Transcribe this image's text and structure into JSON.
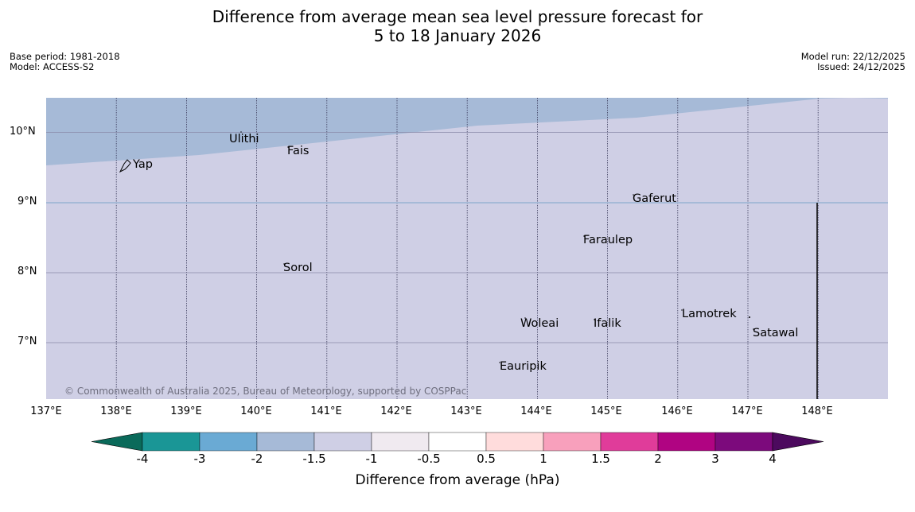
{
  "title": {
    "line1": "Difference from average mean sea level pressure forecast for",
    "line2": "5 to 18 January 2026"
  },
  "meta": {
    "base_period": "Base period: 1981-2018",
    "model": "Model: ACCESS-S2",
    "model_run": "Model run: 22/12/2025",
    "issued": "Issued: 24/12/2025"
  },
  "colors": {
    "band_minus_2_to_minus_1_5": "#a6bad7",
    "band_minus_1_5_to_minus_1": "#cfcfe5",
    "gridline": "#3a3a5a",
    "coast": "#000000"
  },
  "map": {
    "lon_range": [
      137,
      149
    ],
    "lat_range": [
      6.3,
      10.5
    ],
    "lat_labels": [
      "10°N",
      "9°N",
      "8°N",
      "7°N"
    ],
    "lon_labels": [
      "137°E",
      "138°E",
      "139°E",
      "140°E",
      "141°E",
      "142°E",
      "143°E",
      "144°E",
      "145°E",
      "146°E",
      "147°E",
      "148°E"
    ],
    "places": [
      {
        "name": "Yap",
        "lon": 138.2,
        "lat": 9.5
      },
      {
        "name": "Ulithi",
        "lon": 139.65,
        "lat": 9.88
      },
      {
        "name": "Fais",
        "lon": 140.45,
        "lat": 9.72
      },
      {
        "name": "Gaferut",
        "lon": 145.35,
        "lat": 9.03
      },
      {
        "name": "Faraulep",
        "lon": 144.7,
        "lat": 8.45
      },
      {
        "name": "Sorol",
        "lon": 140.38,
        "lat": 8.05
      },
      {
        "name": "Lamotrek",
        "lon": 146.07,
        "lat": 7.39
      },
      {
        "name": "Woleai",
        "lon": 143.8,
        "lat": 7.25
      },
      {
        "name": "Ifalik",
        "lon": 144.83,
        "lat": 7.25
      },
      {
        "name": "Satawal",
        "lon": 147.08,
        "lat": 7.12
      },
      {
        "name": "Eauripik",
        "lon": 143.45,
        "lat": 6.63
      }
    ],
    "copyright": "© Commonwealth of Australia 2025, Bureau of Meteorology, supported by COSPPac"
  },
  "colorbar": {
    "ticks": [
      "-4",
      "-3",
      "-2",
      "-1.5",
      "-1",
      "-0.5",
      "0.5",
      "1",
      "1.5",
      "2",
      "3",
      "4"
    ],
    "colors": [
      "#0a6a5a",
      "#1a9696",
      "#6aaad4",
      "#a6bad7",
      "#cfcfe5",
      "#f0eaf0",
      "#ffffff",
      "#ffdcdc",
      "#f8a0bc",
      "#e03c9a",
      "#b00482",
      "#7c0a7c",
      "#4c0a5e"
    ],
    "label": "Difference from average (hPa)"
  }
}
